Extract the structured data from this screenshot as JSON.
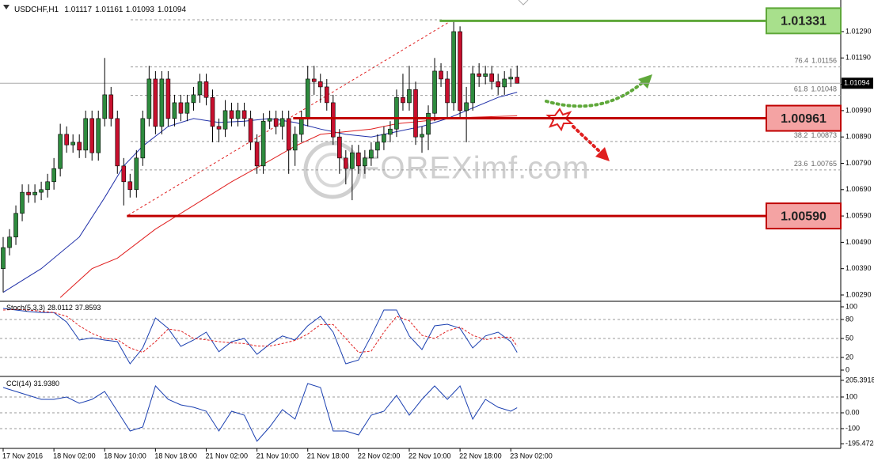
{
  "chart_data": {
    "type": "candlestick",
    "title": "USDCHF,H1",
    "x": [
      0,
      1,
      2,
      3,
      4,
      5,
      6,
      7,
      8,
      9,
      10,
      11,
      12,
      13,
      14,
      15,
      16,
      17,
      18,
      19,
      20,
      21,
      22,
      23,
      24,
      25,
      26,
      27,
      28,
      29,
      30,
      31,
      32,
      33,
      34,
      35,
      36,
      37,
      38,
      39,
      40,
      41,
      42,
      43,
      44,
      45,
      46,
      47,
      48,
      49,
      50,
      51,
      52,
      53,
      54,
      55,
      56,
      57,
      58,
      59,
      60,
      61,
      62,
      63,
      64,
      65,
      66,
      67,
      68,
      69,
      70,
      71,
      72,
      73,
      74,
      75,
      76,
      77,
      78,
      79,
      80,
      81
    ],
    "open": [
      1.0039,
      1.0047,
      1.0051,
      1.006,
      1.0068,
      1.0067,
      1.0068,
      1.0069,
      1.0072,
      1.0077,
      1.009,
      1.0086,
      1.0087,
      1.0084,
      1.0096,
      1.0083,
      1.0096,
      1.0105,
      1.0096,
      1.0078,
      1.0072,
      1.0069,
      1.0081,
      1.0096,
      1.0111,
      1.0093,
      1.0111,
      1.0096,
      1.0102,
      1.0098,
      1.0102,
      1.0105,
      1.011,
      1.0104,
      1.0093,
      1.0092,
      1.0099,
      1.0096,
      1.0099,
      1.0096,
      1.0087,
      1.0078,
      1.0095,
      1.0096,
      1.0093,
      1.0096,
      1.0084,
      1.009,
      1.0096,
      1.0111,
      1.011,
      1.0108,
      1.0102,
      1.0089,
      1.0081,
      1.0077,
      1.0083,
      1.0078,
      1.0081,
      1.0084,
      1.0087,
      1.009,
      1.0092,
      1.0104,
      1.0102,
      1.0107,
      1.0089,
      1.009,
      1.0098,
      1.0114,
      1.0111,
      1.0102,
      1.0129,
      1.0099,
      1.0102,
      1.0113,
      1.0112,
      1.0113,
      1.011,
      1.0108,
      1.0111,
      1.01117
    ],
    "high": [
      1.0051,
      1.0054,
      1.0063,
      1.0071,
      1.0071,
      1.0071,
      1.0072,
      1.0075,
      1.0081,
      1.0094,
      1.0093,
      1.009,
      1.009,
      1.0099,
      1.0099,
      1.0099,
      1.0119,
      1.0108,
      1.0099,
      1.0081,
      1.0075,
      1.0084,
      1.0099,
      1.0116,
      1.0114,
      1.0114,
      1.0114,
      1.0105,
      1.0105,
      1.0105,
      1.0108,
      1.0113,
      1.0113,
      1.0107,
      1.0096,
      1.0103,
      1.0102,
      1.0102,
      1.0102,
      1.0099,
      1.009,
      1.0098,
      1.0099,
      1.0099,
      1.0099,
      1.0099,
      1.0093,
      1.0099,
      1.0116,
      1.0116,
      1.0113,
      1.0111,
      1.0105,
      1.0092,
      1.0084,
      1.0086,
      1.0086,
      1.0084,
      1.0087,
      1.009,
      1.0093,
      1.0095,
      1.0107,
      1.0113,
      1.0116,
      1.011,
      1.0093,
      1.0101,
      1.0119,
      1.0117,
      1.0114,
      1.0133,
      1.0131,
      1.0108,
      1.0116,
      1.0117,
      1.0116,
      1.0116,
      1.0113,
      1.0114,
      1.0115,
      1.01161
    ],
    "low": [
      1.003,
      1.0044,
      1.0048,
      1.0057,
      1.0064,
      1.0064,
      1.0065,
      1.0066,
      1.0069,
      1.0074,
      1.0083,
      1.0083,
      1.0081,
      1.0081,
      1.008,
      1.008,
      1.0093,
      1.0093,
      1.0075,
      1.0063,
      1.0066,
      1.0066,
      1.0078,
      1.0093,
      1.009,
      1.009,
      1.0093,
      1.0093,
      1.0095,
      1.0095,
      1.0099,
      1.0102,
      1.0101,
      1.0087,
      1.0087,
      1.0089,
      1.0093,
      1.0093,
      1.0093,
      1.0084,
      1.0075,
      1.0075,
      1.0092,
      1.009,
      1.0088,
      1.0075,
      1.0078,
      1.0087,
      1.0093,
      1.0105,
      1.0102,
      1.0099,
      1.0086,
      1.0075,
      1.0071,
      1.0065,
      1.0075,
      1.0075,
      1.0078,
      1.0081,
      1.0084,
      1.0087,
      1.0089,
      1.0099,
      1.0099,
      1.0086,
      1.0083,
      1.0084,
      1.0095,
      1.0108,
      1.0096,
      1.0099,
      1.0096,
      1.0087,
      1.0099,
      1.0108,
      1.0109,
      1.0107,
      1.0105,
      1.0105,
      1.0108,
      1.01093
    ],
    "close": [
      1.0047,
      1.0051,
      1.006,
      1.0068,
      1.0067,
      1.0068,
      1.0069,
      1.0072,
      1.0077,
      1.009,
      1.0086,
      1.0087,
      1.0084,
      1.0096,
      1.0083,
      1.0096,
      1.0105,
      1.0096,
      1.0078,
      1.0072,
      1.0069,
      1.0081,
      1.0096,
      1.0111,
      1.0093,
      1.0111,
      1.0096,
      1.0102,
      1.0098,
      1.0102,
      1.0105,
      1.011,
      1.0104,
      1.0093,
      1.0092,
      1.0099,
      1.0096,
      1.0099,
      1.0096,
      1.0087,
      1.0078,
      1.0095,
      1.0096,
      1.0093,
      1.0096,
      1.0084,
      1.009,
      1.0096,
      1.0111,
      1.011,
      1.0108,
      1.0102,
      1.0089,
      1.0081,
      1.0077,
      1.0083,
      1.0078,
      1.0081,
      1.0084,
      1.0087,
      1.009,
      1.0092,
      1.0104,
      1.0102,
      1.0107,
      1.0089,
      1.009,
      1.0098,
      1.0114,
      1.0111,
      1.0102,
      1.0129,
      1.0099,
      1.0102,
      1.0113,
      1.0112,
      1.0113,
      1.011,
      1.0108,
      1.0111,
      1.01117,
      1.01094
    ],
    "up_color": "#2e8b3e",
    "down_color": "#c8102e",
    "xlim": [
      -0.5,
      132
    ],
    "xticks": [
      {
        "value": 0,
        "label": "17 Nov 2016"
      },
      {
        "value": 8,
        "label": "18 Nov 02:00"
      },
      {
        "value": 16,
        "label": "18 Nov 10:00"
      },
      {
        "value": 24,
        "label": "18 Nov 18:00"
      },
      {
        "value": 32,
        "label": "21 Nov 02:00"
      },
      {
        "value": 40,
        "label": "21 Nov 10:00"
      },
      {
        "value": 48,
        "label": "21 Nov 18:00"
      },
      {
        "value": 56,
        "label": "22 Nov 02:00"
      },
      {
        "value": 64,
        "label": "22 Nov 10:00"
      },
      {
        "value": 72,
        "label": "22 Nov 18:00"
      },
      {
        "value": 80,
        "label": "23 Nov 02:00"
      }
    ],
    "ylim": [
      1.00269,
      1.01386
    ],
    "yticks": [
      {
        "value": 1.0029,
        "label": "1.00290"
      },
      {
        "value": 1.0039,
        "label": "1.00390"
      },
      {
        "value": 1.0049,
        "label": "1.00490"
      },
      {
        "value": 1.0059,
        "label": "1.00590"
      },
      {
        "value": 1.0069,
        "label": "1.00690"
      },
      {
        "value": 1.0079,
        "label": "1.00790"
      },
      {
        "value": 1.0089,
        "label": "1.00890"
      },
      {
        "value": 1.0099,
        "label": "1.00990"
      },
      {
        "value": 1.0109,
        "label": "1.01090"
      },
      {
        "value": 1.0119,
        "label": "1.01190"
      },
      {
        "value": 1.0129,
        "label": "1.01290"
      }
    ],
    "moving_averages": [
      {
        "color": "#1f2fa8",
        "x": [
          0,
          6,
          12,
          16,
          19,
          22,
          26,
          30,
          34,
          38,
          42,
          46,
          50,
          54,
          58,
          62,
          66,
          70,
          74,
          78,
          81
        ],
        "values": [
          1.003,
          1.0039,
          1.0051,
          1.0066,
          1.0078,
          1.00855,
          1.0093,
          1.0096,
          1.00945,
          1.0095,
          1.0096,
          1.00945,
          1.0092,
          1.009,
          1.0089,
          1.0091,
          1.0093,
          1.0096,
          1.01,
          1.0104,
          1.0106
        ]
      },
      {
        "color": "#e02020",
        "x": [
          9,
          14,
          18,
          24,
          30,
          36,
          42,
          46,
          50,
          54,
          58,
          62,
          66,
          70,
          74,
          81
        ],
        "values": [
          1.0028,
          1.0039,
          1.0043,
          1.0054,
          1.0063,
          1.0072,
          1.008,
          1.00855,
          1.009,
          1.0091,
          1.0092,
          1.0094,
          1.0095,
          1.0096,
          1.00965,
          1.0097
        ]
      }
    ],
    "fibonacci": {
      "levels": [
        76.4,
        61.8,
        38.2,
        23.6
      ],
      "prices": [
        1.01156,
        1.01048,
        1.00873,
        1.00765
      ]
    },
    "levels": [
      {
        "value": 1.01331,
        "label": "1.01331",
        "from": 68.8,
        "color": "#5fa83a",
        "fill": "#a8e08c"
      },
      {
        "value": 1.00961,
        "label": "1.00961",
        "from": 45.7,
        "color": "#c00000",
        "fill": "#f4a3a3"
      },
      {
        "value": 1.0059,
        "label": "1.00590",
        "from": 19.5,
        "color": "#c00000",
        "fill": "#f4a3a3"
      }
    ],
    "current_price": 1.01094,
    "watermark": "FOREXimf.com",
    "stochastic": {
      "label": "Stoch(5,3,3)",
      "x": [
        0,
        2,
        4,
        6,
        8,
        10,
        12,
        14,
        16,
        18,
        20,
        22,
        24,
        26,
        28,
        30,
        32,
        34,
        36,
        38,
        40,
        42,
        44,
        46,
        48,
        50,
        52,
        54,
        56,
        58,
        60,
        62,
        64,
        66,
        68,
        70,
        72,
        74,
        76,
        78,
        80,
        81
      ],
      "k": [
        97.5,
        95,
        92.5,
        91,
        91,
        76,
        47.5,
        51,
        47.5,
        45,
        10,
        35,
        82.5,
        66,
        37.5,
        47.5,
        60,
        29,
        45,
        50,
        25,
        41,
        54,
        47.5,
        70,
        85,
        60,
        10,
        16,
        54,
        95,
        95,
        54,
        32.5,
        70,
        72.5,
        66,
        35,
        54,
        60,
        45,
        28.0112
      ],
      "d": [
        95,
        96,
        95,
        93,
        91,
        85,
        70,
        58,
        50,
        48,
        35,
        28,
        45,
        65,
        62,
        50,
        48,
        45,
        43,
        42,
        38,
        38,
        42,
        47,
        57,
        72,
        72,
        50,
        28,
        30,
        60,
        85,
        78,
        55,
        50,
        62,
        68,
        55,
        48,
        52,
        52,
        37.8593
      ],
      "k_color": "#1a3fb0",
      "d_color": "#e02020",
      "ylim": [
        -8.75,
        106.25
      ],
      "yticks": [
        100,
        80,
        50,
        20,
        0
      ]
    },
    "cci": {
      "label": "CCI(14)",
      "x": [
        0,
        2,
        4,
        6,
        8,
        10,
        12,
        14,
        16,
        18,
        20,
        22,
        24,
        26,
        28,
        30,
        32,
        34,
        36,
        38,
        40,
        42,
        44,
        46,
        48,
        50,
        52,
        54,
        56,
        58,
        60,
        62,
        64,
        66,
        68,
        70,
        72,
        74,
        76,
        78,
        80,
        81
      ],
      "values": [
        160,
        135,
        110,
        85,
        85,
        100,
        60,
        85,
        135,
        10,
        -115,
        -90,
        170,
        85,
        50,
        35,
        10,
        -115,
        10,
        -15,
        -180,
        -90,
        20,
        -40,
        185,
        160,
        -115,
        -115,
        -140,
        -15,
        10,
        110,
        -15,
        85,
        170,
        85,
        170,
        -40,
        85,
        35,
        10,
        31.938
      ],
      "value_labels": [
        null,
        null,
        null,
        null,
        null,
        null,
        null,
        null,
        null,
        null,
        null,
        null,
        null,
        null,
        null,
        null,
        null,
        null,
        null,
        null,
        null,
        null,
        null,
        null,
        null,
        null,
        null,
        null,
        null,
        null,
        null,
        null,
        null,
        null,
        null,
        null,
        null,
        null,
        null,
        null,
        null,
        "31.9380"
      ],
      "color": "#1a3fb0",
      "ylim": [
        -220,
        220
      ],
      "yticks": [
        205.3918,
        100,
        {
          "value": 0,
          "label": "0.00"
        },
        -100,
        -195.4724
      ]
    }
  }
}
